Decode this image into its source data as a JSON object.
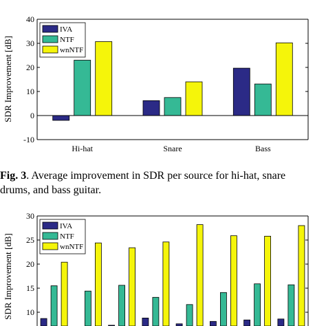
{
  "caption": {
    "label": "Fig. 3",
    "line1": ". Average improvement in SDR per source for hi-hat, snare",
    "line2": "drums, and bass guitar."
  },
  "chart_data": [
    {
      "type": "bar",
      "categories": [
        "Hi-hat",
        "Snare",
        "Bass"
      ],
      "series": [
        {
          "name": "IVA",
          "values": [
            -2,
            6.2,
            19.7
          ],
          "color": "#2b2a86"
        },
        {
          "name": "NTF",
          "values": [
            23,
            7.5,
            13.1
          ],
          "color": "#35b995"
        },
        {
          "name": "wnNTF",
          "values": [
            30.7,
            14,
            30.2
          ],
          "color": "#f5f50a"
        }
      ],
      "ylabel": "SDR Improvement [dB]",
      "ylim": [
        -10,
        40
      ],
      "yticks": [
        -10,
        0,
        10,
        20,
        30,
        40
      ],
      "legend_position": "top-left",
      "grid": false
    },
    {
      "type": "bar",
      "categories": [
        "",
        "",
        "",
        "",
        "",
        "",
        "",
        ""
      ],
      "series": [
        {
          "name": "IVA",
          "values": [
            8.7,
            6.8,
            7.3,
            8.8,
            7.6,
            8.1,
            8.4,
            8.6
          ],
          "color": "#2b2a86"
        },
        {
          "name": "NTF",
          "values": [
            15.5,
            14.4,
            15.6,
            13.1,
            11.6,
            14.1,
            15.9,
            15.7
          ],
          "color": "#35b995"
        },
        {
          "name": "wnNTF",
          "values": [
            20.4,
            24.4,
            23.4,
            24.6,
            28.2,
            25.9,
            25.8,
            28.0
          ],
          "color": "#f5f50a"
        }
      ],
      "ylabel": "SDR Improvement [dB]",
      "ylim": [
        5,
        30
      ],
      "yticks": [
        10,
        15,
        20,
        25,
        30
      ],
      "legend_position": "top-left",
      "grid": false
    }
  ]
}
